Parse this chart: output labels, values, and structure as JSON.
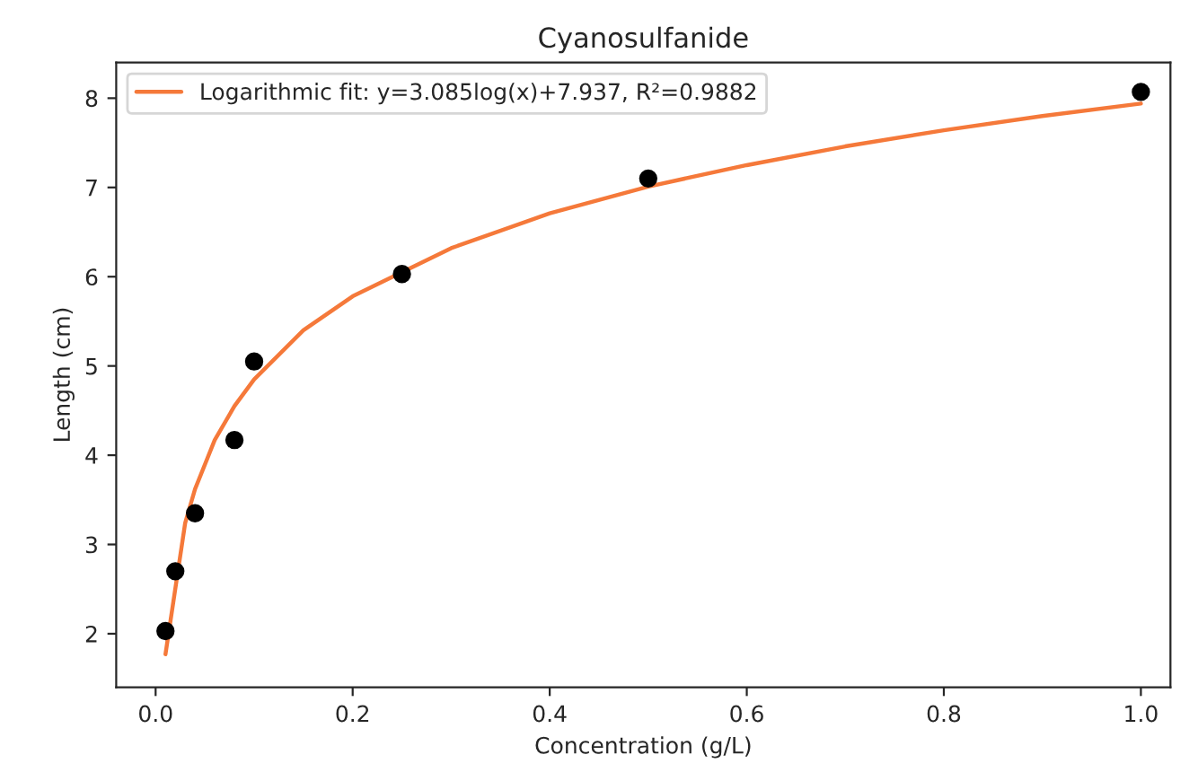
{
  "chart_data": {
    "type": "scatter",
    "title": "Cyanosulfanide",
    "xlabel": "Concentration (g/L)",
    "ylabel": "Length (cm)",
    "xlim": [
      -0.04,
      1.03
    ],
    "xticks": [
      {
        "value": 0,
        "label": "0.0"
      },
      0.2,
      0.4,
      0.6,
      0.8,
      {
        "value": 1,
        "label": "1.0"
      }
    ],
    "ylim": [
      1.4,
      8.4
    ],
    "yticks": [
      2,
      3,
      4,
      5,
      6,
      7,
      8
    ],
    "grid": false,
    "legend": "top left",
    "series": [
      {
        "color": "#000000",
        "marker": "circle",
        "x": [
          0.01,
          0.02,
          0.04,
          0.08,
          0.1,
          0.25,
          0.5,
          1.0
        ],
        "values": [
          2.03,
          2.7,
          3.35,
          4.17,
          5.05,
          6.03,
          7.1,
          8.07
        ]
      },
      {
        "type": "line",
        "name": "Logarithmic fit: y=3.085log(x)+7.937, R²=0.9882",
        "color": "#f5793a",
        "marker": "none",
        "line_style": "solid",
        "x": [
          0.01,
          0.03,
          0.04,
          0.06,
          0.08,
          0.1,
          0.15,
          0.2,
          0.3,
          0.4,
          0.5,
          0.6,
          0.7,
          0.8,
          0.9,
          1.0
        ],
        "values": [
          1.77,
          3.24,
          3.62,
          4.17,
          4.55,
          4.85,
          5.4,
          5.78,
          6.32,
          6.71,
          7.01,
          7.25,
          7.46,
          7.64,
          7.8,
          7.94
        ]
      }
    ]
  }
}
